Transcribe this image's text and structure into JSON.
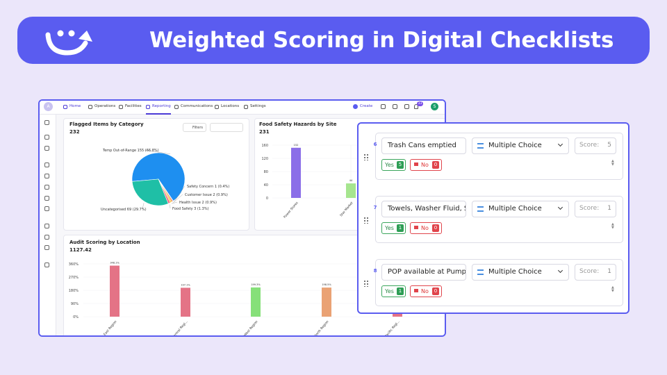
{
  "banner": {
    "title": "Weighted Scoring in Digital Checklists"
  },
  "dashboard": {
    "avatar": "A",
    "nav": [
      "Home",
      "Operations",
      "Facilities",
      "Reporting",
      "Communications",
      "Locations",
      "Settings"
    ],
    "create": "Create",
    "notifications": "33",
    "user": "S",
    "pie": {
      "title": "Flagged Items by Category",
      "total": 232,
      "filters": "Filters",
      "slices": [
        {
          "label": "Temp Out-of-Range 155 (66.8%)",
          "value": 155,
          "color": "#1e8ff0"
        },
        {
          "label": "Safety Concern 1 (0.4%)",
          "value": 1,
          "color": "#7b5ce6"
        },
        {
          "label": "Customer Issue 2 (0.9%)",
          "value": 2,
          "color": "#f28c38"
        },
        {
          "label": "Health Issue 2 (0.9%)",
          "value": 2,
          "color": "#f5c531"
        },
        {
          "label": "Food Safety 3 (1.3%)",
          "value": 3,
          "color": "#ef6d86"
        },
        {
          "label": "Uncategorised 69 (29.7%)",
          "value": 69,
          "color": "#1fbfa6"
        }
      ]
    },
    "sites": {
      "title": "Food Safety Hazards by Site",
      "total": 231,
      "ylim": [
        0,
        160
      ],
      "yticks": [
        0,
        40,
        80,
        120,
        160
      ],
      "bars": [
        {
          "name": "Power Stores",
          "value": 152,
          "color": "#8b6ee8"
        },
        {
          "name": "Star Market",
          "value": 44,
          "color": "#a6e58f"
        }
      ]
    },
    "audit": {
      "title": "Audit Scoring by Location",
      "total": 1127.42,
      "ylim": [
        0,
        360
      ],
      "yticks": [
        {
          "value": 0,
          "label": "0%"
        },
        {
          "value": 90,
          "label": "90%"
        },
        {
          "value": 180,
          "label": "180%"
        },
        {
          "value": 270,
          "label": "270%"
        },
        {
          "value": 360,
          "label": "360%"
        }
      ],
      "bars": [
        {
          "name": "East Region",
          "value": 348.1,
          "value_label": "348.1%",
          "color": "#e47386"
        },
        {
          "name": "Central Regi...",
          "value": 197.1,
          "value_label": "197.1%",
          "color": "#e47386"
        },
        {
          "name": "West Region",
          "value": 199.3,
          "value_label": "199.3%",
          "color": "#86e079"
        },
        {
          "name": "North Region",
          "value": 198.5,
          "value_label": "198.5%",
          "color": "#eaa274"
        },
        {
          "name": "Pacific Regi...",
          "value": 19,
          "color": "#e47386"
        }
      ]
    }
  },
  "checklist": {
    "items": [
      {
        "number": 6,
        "question": "Trash Cans emptied",
        "type": "Multiple Choice",
        "score_label": "Score:",
        "score": 5,
        "yes": "Yes",
        "yes_score": 5,
        "no": "No",
        "no_score": 0
      },
      {
        "number": 7,
        "question": "Towels, Washer Fluid, Sc",
        "type": "Multiple Choice",
        "score_label": "Score:",
        "score": 1,
        "yes": "Yes",
        "yes_score": 1,
        "no": "No",
        "no_score": 0
      },
      {
        "number": 8,
        "question": "POP available at Pumps",
        "type": "Multiple Choice",
        "score_label": "Score:",
        "score": 1,
        "yes": "Yes",
        "yes_score": 1,
        "no": "No",
        "no_score": 0
      }
    ]
  }
}
